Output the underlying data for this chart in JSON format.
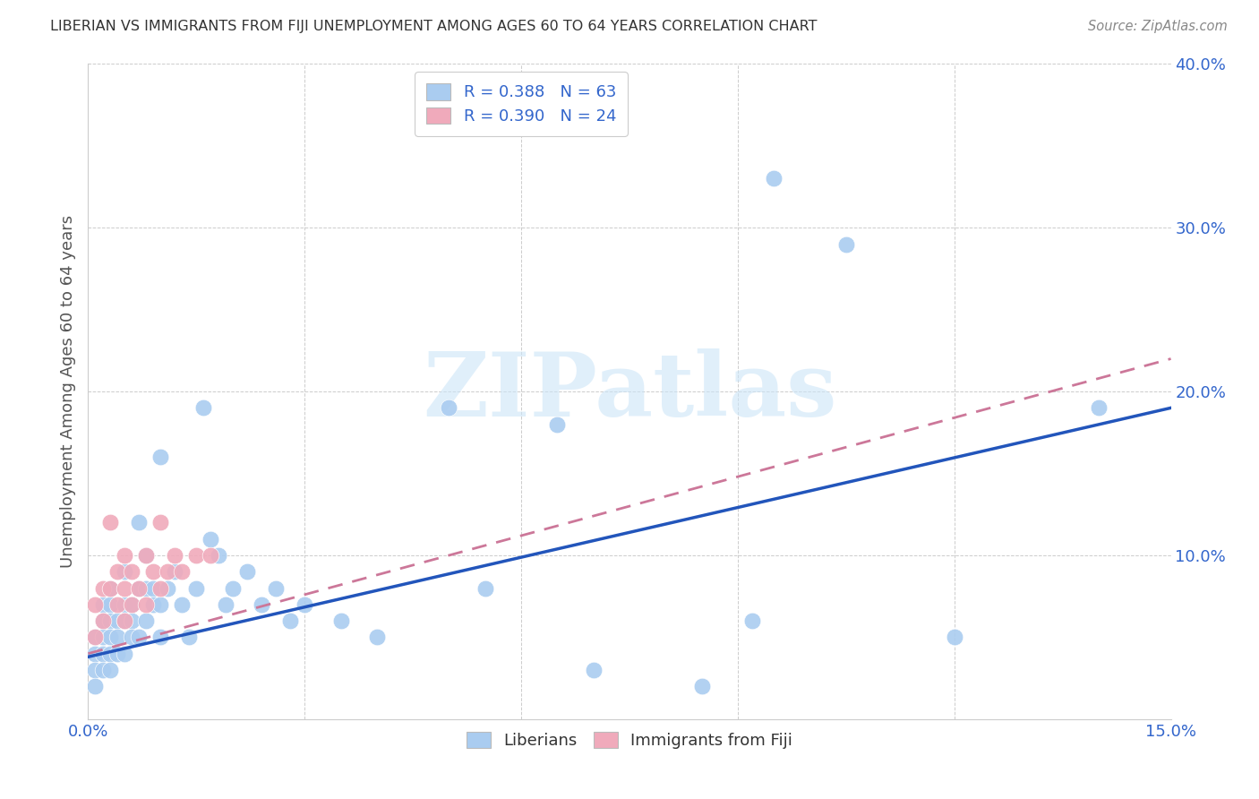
{
  "title": "LIBERIAN VS IMMIGRANTS FROM FIJI UNEMPLOYMENT AMONG AGES 60 TO 64 YEARS CORRELATION CHART",
  "source": "Source: ZipAtlas.com",
  "ylabel": "Unemployment Among Ages 60 to 64 years",
  "xlim": [
    0.0,
    0.15
  ],
  "ylim": [
    0.0,
    0.4
  ],
  "xticks": [
    0.0,
    0.03,
    0.06,
    0.09,
    0.12,
    0.15
  ],
  "xtick_labels": [
    "0.0%",
    "",
    "",
    "",
    "",
    "15.0%"
  ],
  "yticks": [
    0.0,
    0.1,
    0.2,
    0.3,
    0.4
  ],
  "ytick_labels": [
    "",
    "10.0%",
    "20.0%",
    "30.0%",
    "40.0%"
  ],
  "liberian_color": "#aaccf0",
  "fiji_color": "#f0aabb",
  "liberian_line_color": "#2255bb",
  "fiji_line_color": "#cc7799",
  "background_color": "#ffffff",
  "watermark_text": "ZIPatlas",
  "liberian_x": [
    0.001,
    0.001,
    0.001,
    0.001,
    0.002,
    0.002,
    0.002,
    0.002,
    0.002,
    0.003,
    0.003,
    0.003,
    0.003,
    0.003,
    0.003,
    0.004,
    0.004,
    0.004,
    0.005,
    0.005,
    0.005,
    0.005,
    0.006,
    0.006,
    0.006,
    0.007,
    0.007,
    0.007,
    0.008,
    0.008,
    0.008,
    0.009,
    0.009,
    0.01,
    0.01,
    0.01,
    0.011,
    0.012,
    0.013,
    0.014,
    0.015,
    0.016,
    0.017,
    0.018,
    0.019,
    0.02,
    0.022,
    0.024,
    0.026,
    0.028,
    0.03,
    0.035,
    0.04,
    0.05,
    0.055,
    0.065,
    0.07,
    0.085,
    0.092,
    0.095,
    0.105,
    0.12,
    0.14
  ],
  "liberian_y": [
    0.05,
    0.04,
    0.03,
    0.02,
    0.07,
    0.06,
    0.05,
    0.04,
    0.03,
    0.08,
    0.07,
    0.06,
    0.05,
    0.04,
    0.03,
    0.06,
    0.05,
    0.04,
    0.09,
    0.07,
    0.06,
    0.04,
    0.07,
    0.06,
    0.05,
    0.12,
    0.08,
    0.05,
    0.1,
    0.08,
    0.06,
    0.08,
    0.07,
    0.16,
    0.07,
    0.05,
    0.08,
    0.09,
    0.07,
    0.05,
    0.08,
    0.19,
    0.11,
    0.1,
    0.07,
    0.08,
    0.09,
    0.07,
    0.08,
    0.06,
    0.07,
    0.06,
    0.05,
    0.19,
    0.08,
    0.18,
    0.03,
    0.02,
    0.06,
    0.33,
    0.29,
    0.05,
    0.19
  ],
  "fiji_x": [
    0.001,
    0.001,
    0.002,
    0.002,
    0.003,
    0.003,
    0.004,
    0.004,
    0.005,
    0.005,
    0.005,
    0.006,
    0.006,
    0.007,
    0.008,
    0.008,
    0.009,
    0.01,
    0.01,
    0.011,
    0.012,
    0.013,
    0.015,
    0.017
  ],
  "fiji_y": [
    0.07,
    0.05,
    0.08,
    0.06,
    0.12,
    0.08,
    0.09,
    0.07,
    0.1,
    0.08,
    0.06,
    0.09,
    0.07,
    0.08,
    0.1,
    0.07,
    0.09,
    0.12,
    0.08,
    0.09,
    0.1,
    0.09,
    0.1,
    0.1
  ],
  "liberian_trend_x": [
    0.0,
    0.15
  ],
  "liberian_trend_y": [
    0.038,
    0.19
  ],
  "fiji_trend_x": [
    0.0,
    0.15
  ],
  "fiji_trend_y": [
    0.04,
    0.22
  ]
}
